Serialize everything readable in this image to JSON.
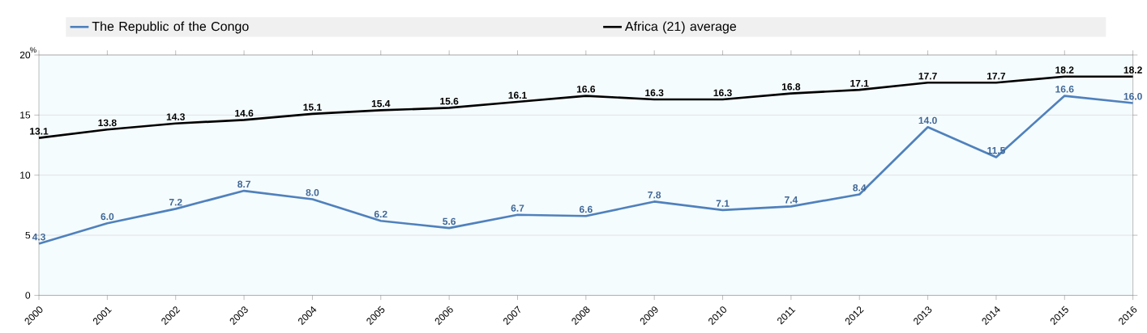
{
  "chart_data": {
    "type": "line",
    "ylabel": "%",
    "x": [
      2000,
      2001,
      2002,
      2003,
      2004,
      2005,
      2006,
      2007,
      2008,
      2009,
      2010,
      2011,
      2012,
      2013,
      2014,
      2015,
      2016
    ],
    "series": [
      {
        "name": "The Republic of the Congo",
        "color": "#4f81bd",
        "values": [
          4.3,
          6.0,
          7.2,
          8.7,
          8.0,
          6.2,
          5.6,
          6.7,
          6.6,
          7.8,
          7.1,
          7.4,
          8.4,
          14.0,
          11.5,
          16.6,
          16.0
        ],
        "value_labels": [
          "4.3",
          "6.0",
          "7.2",
          "8.7",
          "8.0",
          "6.2",
          "5.6",
          "6.7",
          "6.6",
          "7.8",
          "7.1",
          "7.4",
          "8.4",
          "14.0",
          "11.5",
          "16.6",
          "16.0"
        ]
      },
      {
        "name": "Africa (21) average",
        "color": "#000000",
        "values": [
          13.1,
          13.8,
          14.3,
          14.6,
          15.1,
          15.4,
          15.6,
          16.1,
          16.6,
          16.3,
          16.3,
          16.8,
          17.1,
          17.7,
          17.7,
          18.2,
          18.2
        ],
        "value_labels": [
          "13.1",
          "13.8",
          "14.3",
          "14.6",
          "15.1",
          "15.4",
          "15.6",
          "16.1",
          "16.6",
          "16.3",
          "16.3",
          "16.8",
          "17.1",
          "17.7",
          "17.7",
          "18.2",
          "18.2"
        ]
      }
    ],
    "xlim": [
      2000,
      2016
    ],
    "xticks": [
      2000,
      2001,
      2002,
      2003,
      2004,
      2005,
      2006,
      2007,
      2008,
      2009,
      2010,
      2011,
      2012,
      2013,
      2014,
      2015,
      2016
    ],
    "ylim": [
      0,
      20
    ],
    "yticks": [
      0,
      5,
      10,
      15,
      20
    ],
    "grid": "y",
    "legend": "top",
    "marker": "none",
    "line_style": "solid"
  }
}
